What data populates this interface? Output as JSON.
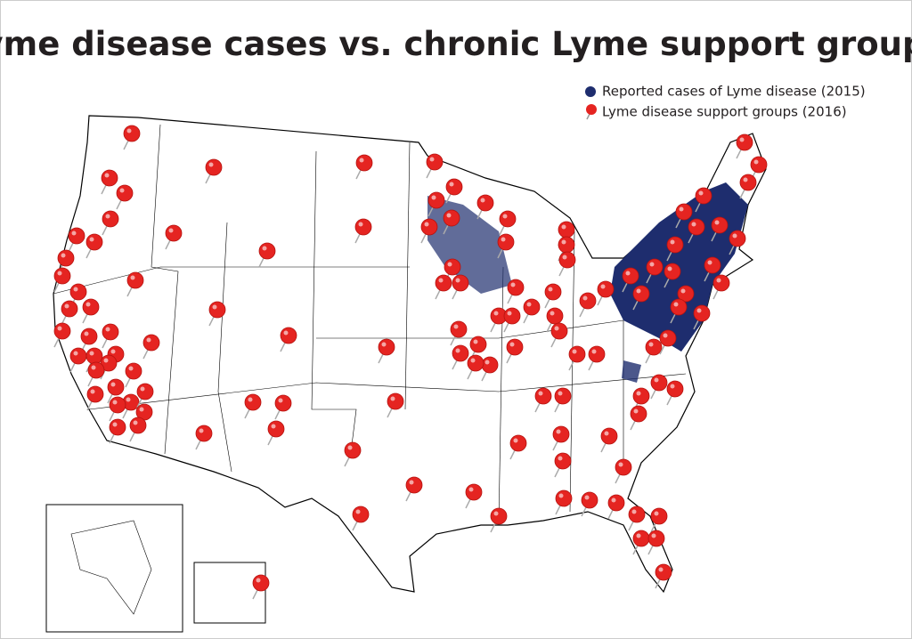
{
  "title": "Lyme disease cases vs. chronic Lyme support groups",
  "legend": {
    "items": [
      "Reported cases of Lyme disease (2015)",
      "Lyme disease support groups (2016)"
    ]
  }
}
